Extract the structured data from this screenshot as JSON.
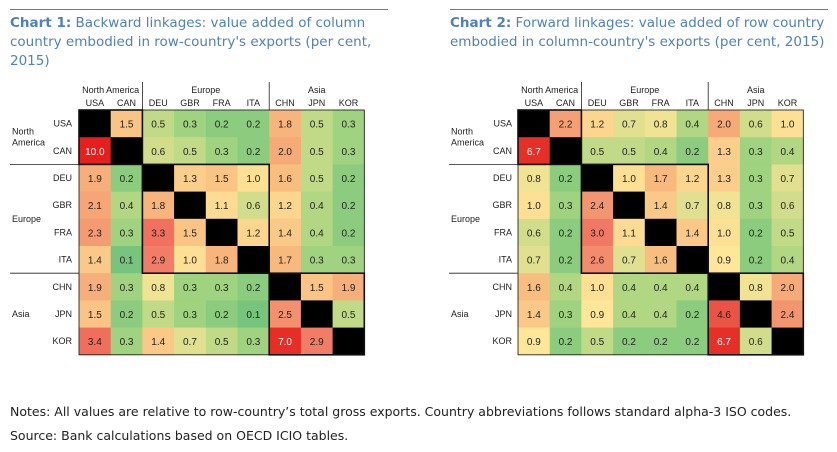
{
  "charts": [
    {
      "label": "Chart 1:",
      "title": "Backward linkages: value added of column country embodied in row-country's exports (per cent, 2015)"
    },
    {
      "label": "Chart 2:",
      "title": "Forward linkages: value added of row country embodied in column-country's exports (per cent, 2015)"
    }
  ],
  "notes": "Notes: All values are relative to row-country’s total gross exports. Country abbreviations follows standard alpha-3 ISO codes.",
  "source": "Source: Bank calculations based on OECD ICIO tables.",
  "chart_data": [
    {
      "type": "heatmap",
      "title": "Backward linkages: value added of column country embodied in row-country's exports (per cent, 2015)",
      "groups": [
        {
          "name": "North America",
          "countries": [
            "USA",
            "CAN"
          ]
        },
        {
          "name": "Europe",
          "countries": [
            "DEU",
            "GBR",
            "FRA",
            "ITA"
          ]
        },
        {
          "name": "Asia",
          "countries": [
            "CHN",
            "JPN",
            "KOR"
          ]
        }
      ],
      "countries": [
        "USA",
        "CAN",
        "DEU",
        "GBR",
        "FRA",
        "ITA",
        "CHN",
        "JPN",
        "KOR"
      ],
      "values": [
        [
          null,
          1.5,
          0.5,
          0.3,
          0.2,
          0.2,
          1.8,
          0.5,
          0.3
        ],
        [
          10.0,
          null,
          0.6,
          0.5,
          0.3,
          0.2,
          2.0,
          0.5,
          0.3
        ],
        [
          1.9,
          0.2,
          null,
          1.3,
          1.5,
          1.0,
          1.6,
          0.5,
          0.2
        ],
        [
          2.1,
          0.4,
          1.8,
          null,
          1.1,
          0.6,
          1.2,
          0.4,
          0.2
        ],
        [
          2.3,
          0.3,
          3.3,
          1.5,
          null,
          1.2,
          1.4,
          0.4,
          0.2
        ],
        [
          1.4,
          0.1,
          2.9,
          1.0,
          1.8,
          null,
          1.7,
          0.3,
          0.3
        ],
        [
          1.9,
          0.3,
          0.8,
          0.3,
          0.3,
          0.2,
          null,
          1.5,
          1.9
        ],
        [
          1.5,
          0.2,
          0.5,
          0.3,
          0.2,
          0.1,
          2.5,
          null,
          0.5
        ],
        [
          3.4,
          0.3,
          1.4,
          0.7,
          0.5,
          0.3,
          7.0,
          2.9,
          null
        ]
      ]
    },
    {
      "type": "heatmap",
      "title": "Forward linkages: value added of row country embodied in column-country's exports (per cent, 2015)",
      "groups": [
        {
          "name": "North America",
          "countries": [
            "USA",
            "CAN"
          ]
        },
        {
          "name": "Europe",
          "countries": [
            "DEU",
            "GBR",
            "FRA",
            "ITA"
          ]
        },
        {
          "name": "Asia",
          "countries": [
            "CHN",
            "JPN",
            "KOR"
          ]
        }
      ],
      "countries": [
        "USA",
        "CAN",
        "DEU",
        "GBR",
        "FRA",
        "ITA",
        "CHN",
        "JPN",
        "KOR"
      ],
      "values": [
        [
          null,
          2.2,
          1.2,
          0.7,
          0.8,
          0.4,
          2.0,
          0.6,
          1.0
        ],
        [
          6.7,
          null,
          0.5,
          0.5,
          0.4,
          0.2,
          1.3,
          0.3,
          0.4
        ],
        [
          0.8,
          0.2,
          null,
          1.0,
          1.7,
          1.2,
          1.3,
          0.3,
          0.7
        ],
        [
          1.0,
          0.3,
          2.4,
          null,
          1.4,
          0.7,
          0.8,
          0.3,
          0.6
        ],
        [
          0.6,
          0.2,
          3.0,
          1.1,
          null,
          1.4,
          1.0,
          0.2,
          0.5
        ],
        [
          0.7,
          0.2,
          2.6,
          0.7,
          1.6,
          null,
          0.9,
          0.2,
          0.4
        ],
        [
          1.6,
          0.4,
          1.0,
          0.4,
          0.4,
          0.4,
          null,
          0.8,
          2.0
        ],
        [
          1.4,
          0.3,
          0.9,
          0.4,
          0.4,
          0.2,
          4.6,
          null,
          2.4
        ],
        [
          0.9,
          0.2,
          0.5,
          0.2,
          0.2,
          0.2,
          6.7,
          0.6,
          null
        ]
      ]
    }
  ]
}
